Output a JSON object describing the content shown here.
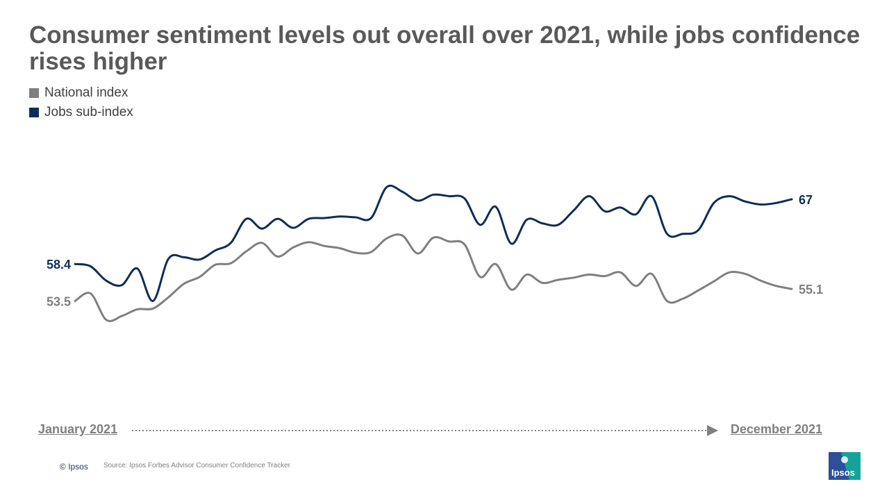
{
  "title": "Consumer sentiment levels out overall over 2021, while jobs confidence rises higher",
  "legend": [
    {
      "label": "National index",
      "color": "#7f7f7f"
    },
    {
      "label": "Jobs sub-index",
      "color": "#0e2d57"
    }
  ],
  "axis": {
    "start_label": "January 2021",
    "end_label": "December 2021"
  },
  "footer": {
    "copyright": "© Ipsos",
    "source": "Source: Ipsos Forbes Advisor Consumer Confidence Tracker"
  },
  "logo": {
    "text": "Ipsos"
  },
  "chart_data": {
    "type": "line",
    "title": "Consumer sentiment levels out overall over 2021, while jobs confidence rises higher",
    "xlabel": "",
    "ylabel": "",
    "x_range": [
      "January 2021",
      "December 2021"
    ],
    "ylim": [
      40,
      75
    ],
    "grid": false,
    "legend_position": "top-left",
    "series": [
      {
        "name": "National index",
        "color": "#7f7f7f",
        "start_label": "53.5",
        "end_label": "55.1",
        "values": [
          53.5,
          54.5,
          51.0,
          51.5,
          52.4,
          52.5,
          54.0,
          55.8,
          56.7,
          58.3,
          58.5,
          60.1,
          61.2,
          59.4,
          60.6,
          61.3,
          60.8,
          60.5,
          59.9,
          60.0,
          61.8,
          62.2,
          59.8,
          61.9,
          61.4,
          61.0,
          56.7,
          58.4,
          55.0,
          57.0,
          55.9,
          56.3,
          56.6,
          57.0,
          56.8,
          57.3,
          55.5,
          57.1,
          53.5,
          53.8,
          54.9,
          56.1,
          57.3,
          57.1,
          56.2,
          55.5,
          55.1
        ]
      },
      {
        "name": "Jobs sub-index",
        "color": "#0e2d57",
        "start_label": "58.4",
        "end_label": "67",
        "values": [
          58.4,
          58.1,
          56.2,
          55.6,
          57.8,
          53.5,
          59.1,
          59.3,
          59.0,
          60.2,
          61.2,
          64.4,
          63.1,
          64.4,
          63.2,
          64.4,
          64.5,
          64.7,
          64.6,
          64.5,
          68.6,
          68.0,
          66.8,
          67.6,
          67.4,
          67.1,
          63.6,
          66.0,
          61.1,
          64.3,
          63.8,
          63.6,
          65.5,
          67.4,
          65.4,
          65.9,
          65.0,
          67.4,
          62.4,
          62.4,
          62.9,
          66.5,
          67.4,
          66.7,
          66.3,
          66.5,
          67.0
        ]
      }
    ]
  }
}
